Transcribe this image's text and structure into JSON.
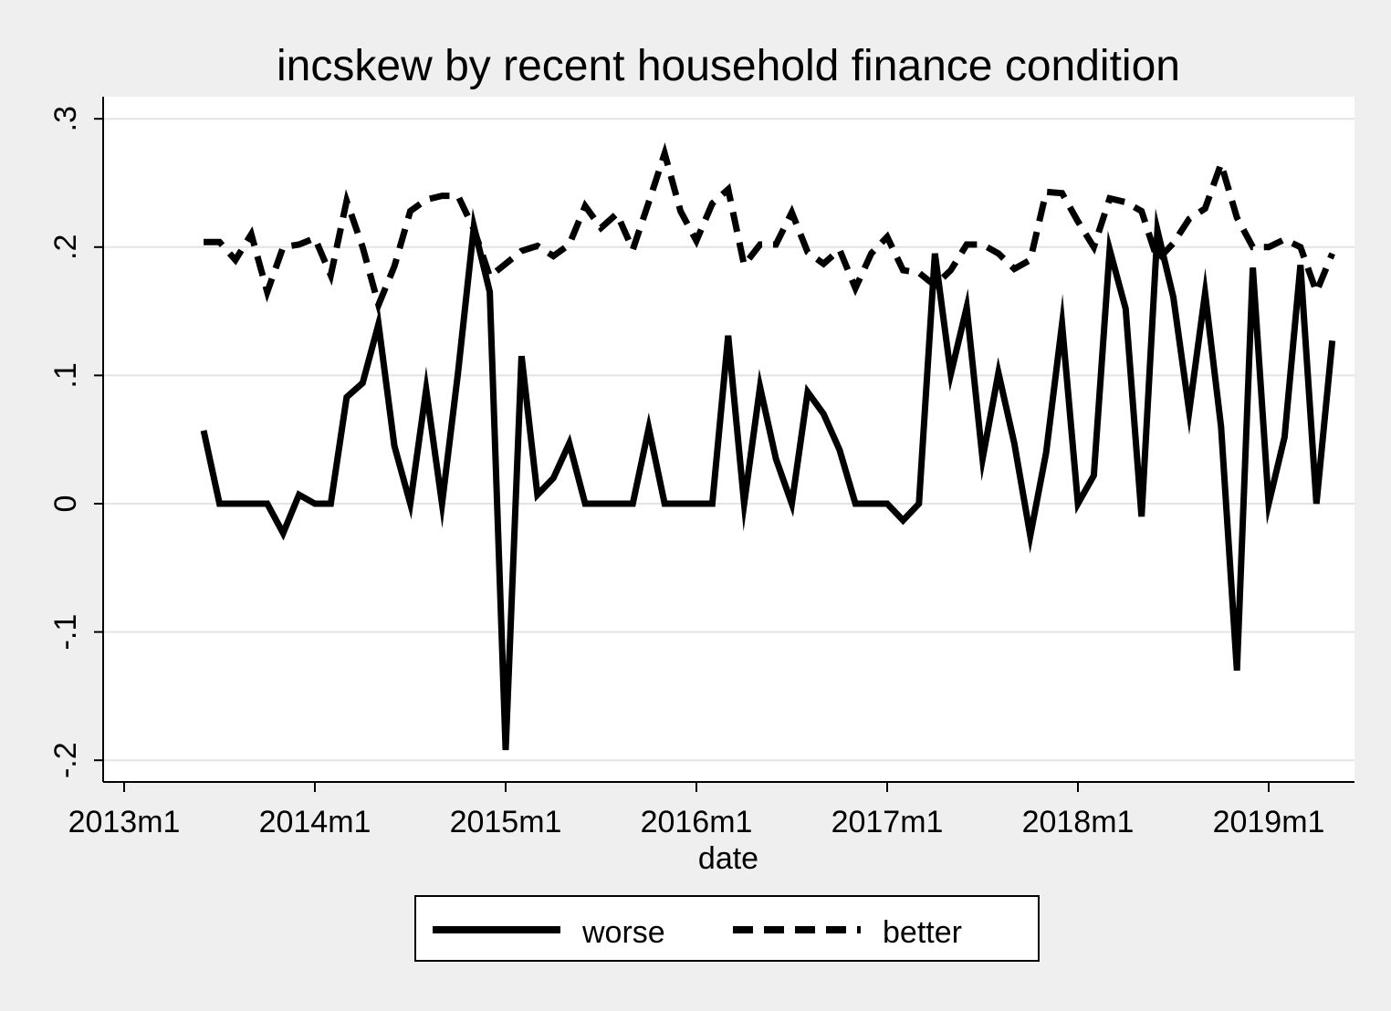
{
  "chart_data": {
    "type": "line",
    "title": "incskew by recent household finance condition",
    "xlabel": "date",
    "ylabel": "",
    "x_start": "2013m6",
    "x_end": "2019m5",
    "xlim": [
      "2013m1",
      "2019m6"
    ],
    "ylim": [
      -0.2,
      0.3
    ],
    "x_ticks": [
      "2013m1",
      "2014m1",
      "2015m1",
      "2016m1",
      "2017m1",
      "2018m1",
      "2019m1"
    ],
    "y_ticks": [
      -0.2,
      -0.1,
      0,
      0.1,
      0.2,
      0.3
    ],
    "y_tick_labels": [
      "-.2",
      "-.1",
      "0",
      ".1",
      ".2",
      ".3"
    ],
    "grid": true,
    "legend_position": "bottom",
    "series": [
      {
        "name": "worse",
        "style": "solid",
        "color": "#000000",
        "values": [
          0.057,
          0,
          0,
          0,
          0,
          -0.023,
          0.007,
          0,
          0,
          0.083,
          0.094,
          0.14,
          0.045,
          0,
          0.089,
          0,
          0.102,
          0.216,
          0.165,
          -0.192,
          0.115,
          0.007,
          0.02,
          0.047,
          0,
          0,
          0,
          0,
          0.059,
          0,
          0,
          0,
          0,
          0.131,
          0,
          0.091,
          0.035,
          0,
          0.087,
          0.07,
          0.042,
          0,
          0,
          0,
          -0.013,
          0,
          0.195,
          0.101,
          0.153,
          0.035,
          0.102,
          0.047,
          -0.025,
          0.04,
          0.14,
          0,
          0.022,
          0.198,
          0.152,
          -0.01,
          0.213,
          0.161,
          0.072,
          0.164,
          0.06,
          -0.13,
          0.184,
          0,
          0.052,
          0.186,
          0,
          0.127
        ]
      },
      {
        "name": "better",
        "style": "dashed",
        "color": "#000000",
        "values": [
          0.204,
          0.204,
          0.19,
          0.21,
          0.165,
          0.2,
          0.202,
          0.207,
          0.178,
          0.236,
          0.2,
          0.155,
          0.185,
          0.228,
          0.237,
          0.24,
          0.24,
          0.214,
          0.177,
          0.187,
          0.197,
          0.201,
          0.193,
          0.202,
          0.232,
          0.215,
          0.226,
          0.198,
          0.235,
          0.273,
          0.228,
          0.205,
          0.234,
          0.245,
          0.186,
          0.202,
          0.202,
          0.227,
          0.196,
          0.187,
          0.198,
          0.168,
          0.195,
          0.208,
          0.182,
          0.18,
          0.17,
          0.182,
          0.202,
          0.202,
          0.195,
          0.183,
          0.19,
          0.243,
          0.242,
          0.22,
          0.2,
          0.238,
          0.235,
          0.228,
          0.19,
          0.203,
          0.222,
          0.23,
          0.265,
          0.223,
          0.2,
          0.2,
          0.206,
          0.2,
          0.165,
          0.195
        ]
      }
    ]
  }
}
